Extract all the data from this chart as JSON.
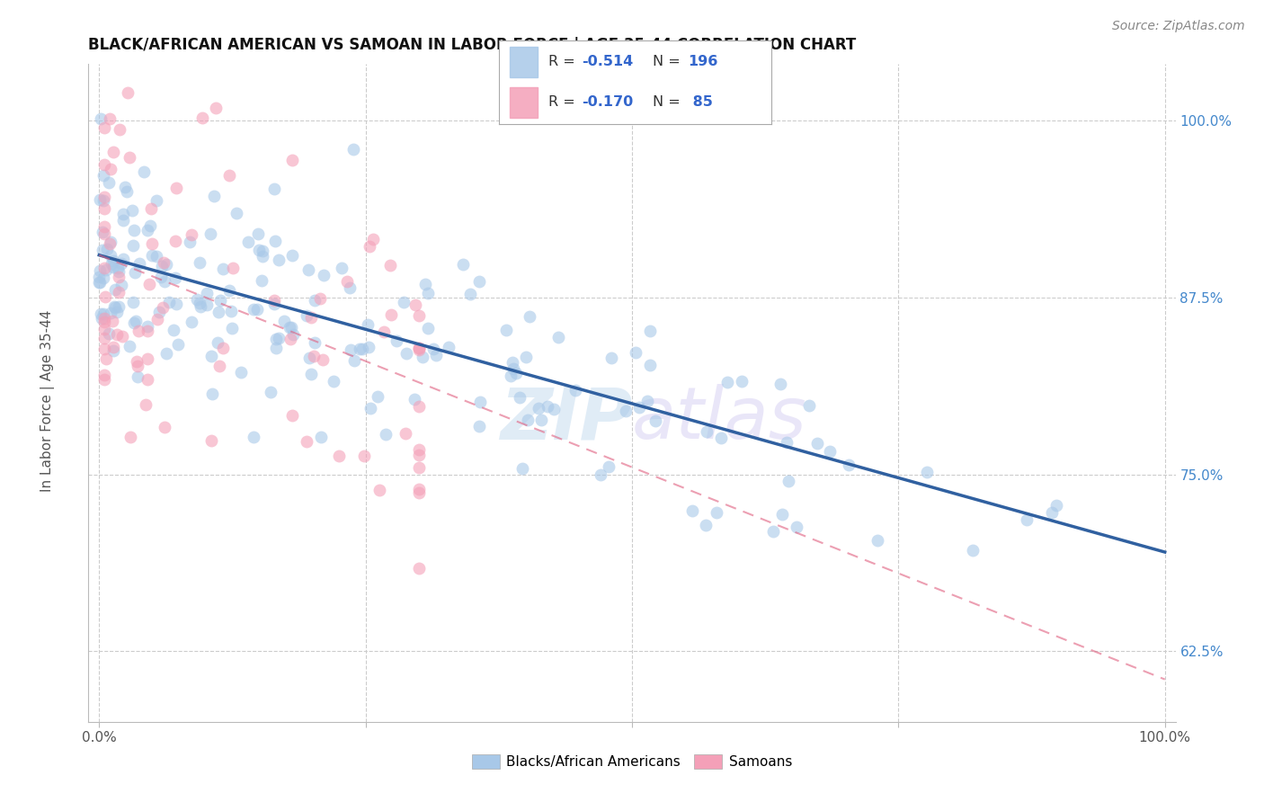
{
  "title": "BLACK/AFRICAN AMERICAN VS SAMOAN IN LABOR FORCE | AGE 35-44 CORRELATION CHART",
  "source": "Source: ZipAtlas.com",
  "ylabel": "In Labor Force | Age 35-44",
  "watermark": "ZIPatlas",
  "legend_blue_r": "-0.514",
  "legend_blue_n": "196",
  "legend_pink_r": "-0.170",
  "legend_pink_n": "85",
  "xlim": [
    -0.01,
    1.01
  ],
  "ylim": [
    0.575,
    1.04
  ],
  "ytick_positions": [
    0.625,
    0.75,
    0.875,
    1.0
  ],
  "ytick_labels": [
    "62.5%",
    "75.0%",
    "87.5%",
    "100.0%"
  ],
  "blue_scatter_color": "#a8c8e8",
  "pink_scatter_color": "#f4a0b8",
  "blue_line_color": "#3060a0",
  "pink_line_color": "#e06080",
  "background_color": "#ffffff",
  "grid_color": "#cccccc",
  "blue_trend_x0": 0.0,
  "blue_trend_y0": 0.905,
  "blue_trend_x1": 1.0,
  "blue_trend_y1": 0.695,
  "pink_trend_x0": 0.0,
  "pink_trend_y0": 0.905,
  "pink_trend_x1": 1.0,
  "pink_trend_y1": 0.605
}
